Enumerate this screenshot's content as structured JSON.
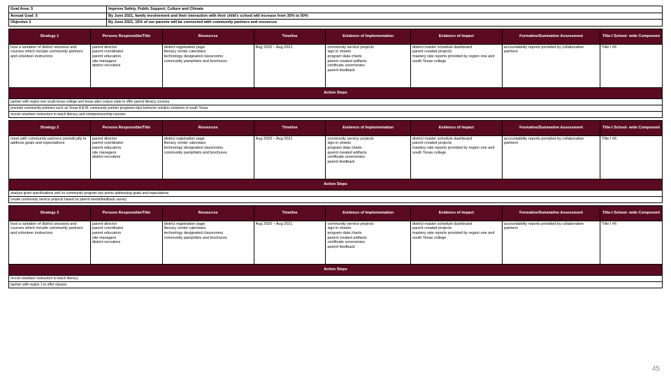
{
  "top": {
    "goalAreaLabel": "Goal Area: 5",
    "goalAreaText": "Improve Safety, Public Support, Culture and Climate",
    "annualGoalLabel": "Annual Goal: 5",
    "annualGoalText": "By June 2021, family involvement and their interaction with their child's school will increase from 35% to 50%",
    "objectiveLabel": "Objective 3",
    "objectiveText": "By June 2021, 15% of our parents will be connected with community partners and resources"
  },
  "headers": {
    "strategy1": "Strategy 1",
    "strategy2": "Strategy 2",
    "strategy3": "Strategy 3",
    "persons": "Persons Responsible/Title",
    "resources": "Resources",
    "timeline": "Timeline",
    "evImplementation": "Evidence of Implementation",
    "evImpact": "Evidence of Impact",
    "assessment": "Formative/Summative Assessment",
    "component": "Title-I School- wide Component",
    "actionSteps": "Action Steps"
  },
  "row1": {
    "strategy": "host a variation of district sessions and courses which include community partners and volunteer instructors",
    "persons": "parent director\nparent coordinator\nparent educators\nsite managers\ndistrict recruiters",
    "resources": "district registration page\nliteracy center calendars\ntechnology designated classrooms\ncommunity pamphlets and brochures",
    "timeline": "Aug 2020 – Aug 2021",
    "evImplementation": "community service projects\nsign in sheets\nprogram data charts\nparent created artifacts\ncertificate ceremonies\nparent feedback",
    "evImpact": "district master schedule dashboard\nparent created projects\nmastery rate reports provided by region one and south Texas college",
    "assessment": "accountability reports provided by collaborative partners",
    "component": "Title I #6"
  },
  "actions1": {
    "a1": "partner with region one south texas college and texas a&m corpus state to offer parent literacy courses",
    "a2": "promote community partners such as Texas A & M, community partner programs trips behavior solution solutions of south Texas",
    "a3": "recruit volunteer instructors to teach literacy and entrepreneurship courses"
  },
  "row2": {
    "strategy": "meet with community partners periodically to address goals and expectations",
    "persons": "parent director\nparent coordinator\nparent educators\nsite managers\ndistrict recruiters",
    "resources": "district registration page\nliteracy center calendars\ntechnology designated classrooms\ncommunity pamphlets and brochures",
    "timeline": "Aug 2020 – Aug 2021",
    "evImplementation": "community service projects\nsign in sheets\nprogram data charts\nparent created artifacts\ncertificate ceremonies\nparent feedback",
    "evImpact": "district master schedule dashboard\nparent created projects\nmastery rate reports provided by region one and south Texas college",
    "assessment": "accountability reports provided by collaborative partners",
    "component": "Title I #6"
  },
  "actions2": {
    "a1": "analyze grant specifications and /or community program key points addressing goals and expectations",
    "a2": "create community service projects based on parent needs/feedback survey"
  },
  "row3": {
    "strategy": "host a variation of district sessions and courses which include community partners and volunteer instructors",
    "persons": "parent director\nparent coordinator\nparent educators\nsite managers\ndistrict recruiters",
    "resources": "district registration page\nliteracy center calendars\ntechnology designated classrooms\ncommunity pamphlets and brochures",
    "timeline": "Aug 2020 – Aug 2021",
    "evImplementation": "community service projects\nsign in sheets\nprogram data charts\nparent created artifacts\ncertificate ceremonies\nparent feedback",
    "evImpact": "district master schedule dashboard\nparent created projects\nmastery rate reports provided by region one and south Texas college",
    "assessment": "accountability reports provided by collaborative partners",
    "component": "Title I #6"
  },
  "actions3": {
    "a1": "recruit volunteer instructors to teach literacy",
    "a2": "partner with region 1 to offer classes"
  },
  "pageNum": "45"
}
